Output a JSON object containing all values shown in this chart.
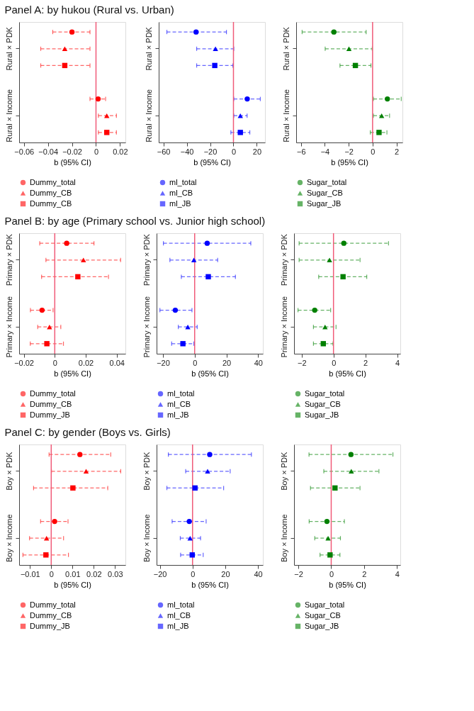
{
  "chart_data": [
    {
      "type": "scatter",
      "title": "Panel A: by hukou (Rural vs. Urban)",
      "xlabel": "b (95% CI)",
      "orientation": "horizontal",
      "categories": [
        null,
        "Rural × PDK",
        null,
        null,
        null,
        "Rural × Income",
        null
      ],
      "xlim": [
        -0.064,
        0.0245
      ],
      "xticks": [
        -0.06,
        -0.04,
        -0.02,
        0,
        0.02
      ],
      "legend": "bottom",
      "line_style": "dashed",
      "ref_lines": [
        {
          "axis": "x",
          "value": 0,
          "color": "#f05a78"
        }
      ],
      "series": [
        {
          "name": "Dummy_total",
          "color": "#ff0000",
          "marker": "circle",
          "values": [
            -0.02,
            null,
            null,
            null,
            0.0018,
            null,
            null
          ],
          "errors": [
            [
              -0.036,
              -0.005
            ],
            null,
            null,
            null,
            [
              -0.005,
              0.008
            ],
            null,
            null
          ]
        },
        {
          "name": "Dummy_CB",
          "color": "#ff0000",
          "marker": "triangle",
          "values": [
            null,
            -0.026,
            null,
            null,
            null,
            0.009,
            null
          ],
          "errors": [
            null,
            [
              -0.046,
              -0.005
            ],
            null,
            null,
            null,
            [
              0.002,
              0.017
            ],
            null
          ]
        },
        {
          "name": "Dummy_CB",
          "color": "#ff0000",
          "marker": "square",
          "values": [
            null,
            null,
            -0.026,
            null,
            null,
            null,
            0.009
          ],
          "errors": [
            null,
            null,
            [
              -0.046,
              -0.005
            ],
            null,
            null,
            null,
            [
              0.002,
              0.017
            ]
          ]
        }
      ]
    },
    {
      "type": "scatter",
      "xlabel": "b (95% CI)",
      "orientation": "horizontal",
      "categories": [
        null,
        "Rural × PDK",
        null,
        null,
        null,
        "Rural × Income",
        null
      ],
      "xlim": [
        -64,
        27
      ],
      "xticks": [
        -60,
        -40,
        -20,
        0,
        20
      ],
      "legend": "bottom",
      "line_style": "dashed",
      "ref_lines": [
        {
          "axis": "x",
          "value": 0,
          "color": "#f05a78"
        }
      ],
      "series": [
        {
          "name": "ml_total",
          "color": "#0000ff",
          "marker": "circle",
          "values": [
            -32,
            null,
            null,
            null,
            11.8,
            null,
            null
          ],
          "errors": [
            [
              -57,
              -6
            ],
            null,
            null,
            null,
            [
              0.3,
              23
            ],
            null,
            null
          ]
        },
        {
          "name": "ml_CB",
          "color": "#0000ff",
          "marker": "triangle",
          "values": [
            null,
            -15.4,
            null,
            null,
            null,
            5.9,
            null
          ],
          "errors": [
            null,
            [
              -31.5,
              0.3
            ],
            null,
            null,
            null,
            [
              0.3,
              11.7
            ],
            null
          ]
        },
        {
          "name": "ml_JB",
          "color": "#0000ff",
          "marker": "square",
          "values": [
            null,
            null,
            -16,
            null,
            null,
            null,
            5.9
          ],
          "errors": [
            null,
            null,
            [
              -31.5,
              -0.5
            ],
            null,
            null,
            null,
            [
              -2.2,
              14
            ]
          ]
        }
      ]
    },
    {
      "type": "scatter",
      "xlabel": "b (95% CI)",
      "orientation": "horizontal",
      "categories": [
        null,
        "Rural × PDK",
        null,
        null,
        null,
        "Rural × Income",
        null
      ],
      "xlim": [
        -6.4,
        2.5
      ],
      "xticks": [
        -6,
        -4,
        -2,
        0,
        2
      ],
      "legend": "bottom",
      "line_style": "dashed",
      "ref_lines": [
        {
          "axis": "x",
          "value": 0,
          "color": "#f05a78"
        }
      ],
      "series": [
        {
          "name": "Sugar_total",
          "color": "#008000",
          "marker": "circle",
          "values": [
            -3.24,
            null,
            null,
            null,
            1.24,
            null,
            null
          ],
          "errors": [
            [
              -5.9,
              -0.54
            ],
            null,
            null,
            null,
            [
              0.07,
              2.4
            ],
            null,
            null
          ]
        },
        {
          "name": "Sugar_CB",
          "color": "#008000",
          "marker": "triangle",
          "values": [
            null,
            -1.98,
            null,
            null,
            null,
            0.76,
            null
          ],
          "errors": [
            null,
            [
              -3.97,
              -0.03
            ],
            null,
            null,
            null,
            [
              0.07,
              1.42
            ],
            null
          ]
        },
        {
          "name": "Sugar_JB",
          "color": "#008000",
          "marker": "square",
          "values": [
            null,
            null,
            -1.44,
            null,
            null,
            null,
            0.54
          ],
          "errors": [
            null,
            null,
            [
              -2.73,
              -0.14
            ],
            null,
            null,
            null,
            [
              -0.19,
              1.2
            ]
          ]
        }
      ]
    },
    {
      "type": "scatter",
      "title": "Panel B: by age (Primary school vs. Junior high school)",
      "xlabel": "b (95% CI)",
      "orientation": "horizontal",
      "categories": [
        null,
        "Primary × PDK",
        null,
        null,
        null,
        "Primary × Income",
        null
      ],
      "xlim": [
        -0.023,
        0.0456
      ],
      "xticks": [
        -0.02,
        0,
        0.02,
        0.04
      ],
      "legend": "bottom",
      "line_style": "dashed",
      "ref_lines": [
        {
          "axis": "x",
          "value": 0,
          "color": "#f05a78"
        }
      ],
      "series": [
        {
          "name": "Dummy_total",
          "color": "#ff0000",
          "marker": "circle",
          "values": [
            0.0077,
            null,
            null,
            null,
            -0.0082,
            null,
            null
          ],
          "errors": [
            [
              -0.0097,
              0.0253
            ],
            null,
            null,
            null,
            [
              -0.0157,
              -0.0011
            ],
            null,
            null
          ]
        },
        {
          "name": "Dummy_CB",
          "color": "#ff0000",
          "marker": "triangle",
          "values": [
            null,
            0.0185,
            null,
            null,
            null,
            -0.0034,
            null
          ],
          "errors": [
            null,
            [
              -0.0057,
              0.0425
            ],
            null,
            null,
            null,
            [
              -0.011,
              0.0039
            ],
            null
          ]
        },
        {
          "name": "Dummy_JB",
          "color": "#ff0000",
          "marker": "square",
          "values": [
            null,
            null,
            0.0149,
            null,
            null,
            null,
            -0.0051
          ],
          "errors": [
            null,
            null,
            [
              -0.0085,
              0.0347
            ],
            null,
            null,
            null,
            [
              -0.0158,
              0.0056
            ]
          ]
        }
      ]
    },
    {
      "type": "scatter",
      "xlabel": "b (95% CI)",
      "orientation": "horizontal",
      "categories": [
        null,
        "Primary × PDK",
        null,
        null,
        null,
        "Primary × Income",
        null
      ],
      "xlim": [
        -24,
        43
      ],
      "xticks": [
        -20,
        0,
        20,
        40
      ],
      "legend": "bottom",
      "line_style": "dashed",
      "ref_lines": [
        {
          "axis": "x",
          "value": 0,
          "color": "#f05a78"
        }
      ],
      "series": [
        {
          "name": "ml_total",
          "color": "#0000ff",
          "marker": "circle",
          "values": [
            7.9,
            null,
            null,
            null,
            -12.2,
            null,
            null
          ],
          "errors": [
            [
              -19.7,
              35.4
            ],
            null,
            null,
            null,
            [
              -21.9,
              -1.7
            ],
            null,
            null
          ]
        },
        {
          "name": "ml_CB",
          "color": "#0000ff",
          "marker": "triangle",
          "values": [
            null,
            -0.5,
            null,
            null,
            null,
            -4.3,
            null
          ],
          "errors": [
            null,
            [
              -15.6,
              14.5
            ],
            null,
            null,
            null,
            [
              -10.3,
              1.6
            ],
            null
          ]
        },
        {
          "name": "ml_JB",
          "color": "#0000ff",
          "marker": "square",
          "values": [
            null,
            null,
            8.6,
            null,
            null,
            null,
            -7.4
          ],
          "errors": [
            null,
            null,
            [
              -8.4,
              25.7
            ],
            null,
            null,
            null,
            [
              -14.5,
              -0.5
            ]
          ]
        }
      ]
    },
    {
      "type": "scatter",
      "xlabel": "b (95% CI)",
      "orientation": "horizontal",
      "categories": [
        null,
        "Primary × PDK",
        null,
        null,
        null,
        "Primary × Income",
        null
      ],
      "xlim": [
        -2.48,
        4.2
      ],
      "xticks": [
        -2,
        0,
        2,
        4
      ],
      "legend": "bottom",
      "line_style": "dashed",
      "ref_lines": [
        {
          "axis": "x",
          "value": 0,
          "color": "#f05a78"
        }
      ],
      "series": [
        {
          "name": "Sugar_total",
          "color": "#008000",
          "marker": "circle",
          "values": [
            0.65,
            null,
            null,
            null,
            -1.18,
            null,
            null
          ],
          "errors": [
            [
              -2.16,
              3.46
            ],
            null,
            null,
            null,
            [
              -2.23,
              -0.18
            ],
            null,
            null
          ]
        },
        {
          "name": "Sugar_CB",
          "color": "#008000",
          "marker": "triangle",
          "values": [
            null,
            -0.25,
            null,
            null,
            null,
            -0.53,
            null
          ],
          "errors": [
            null,
            [
              -2.16,
              1.67
            ],
            null,
            null,
            null,
            [
              -1.26,
              0.16
            ],
            null
          ]
        },
        {
          "name": "Sugar_JB",
          "color": "#008000",
          "marker": "square",
          "values": [
            null,
            null,
            0.6,
            null,
            null,
            null,
            -0.64
          ],
          "errors": [
            null,
            null,
            [
              -0.93,
              2.09
            ],
            null,
            null,
            null,
            [
              -1.26,
              -0.03
            ]
          ]
        }
      ]
    },
    {
      "type": "scatter",
      "title": "Panel C: by gender (Boys vs. Girls)",
      "xlabel": "b (95% CI)",
      "orientation": "horizontal",
      "categories": [
        null,
        "Boy × PDK",
        null,
        null,
        null,
        "Boy × Income",
        null
      ],
      "xlim": [
        -0.0151,
        0.0349
      ],
      "xticks": [
        -0.01,
        0,
        0.01,
        0.02,
        0.03
      ],
      "legend": "bottom",
      "line_style": "dashed",
      "ref_lines": [
        {
          "axis": "x",
          "value": 0,
          "color": "#f05a78"
        }
      ],
      "series": [
        {
          "name": "Dummy_total",
          "color": "#ff0000",
          "marker": "circle",
          "values": [
            0.0135,
            null,
            null,
            null,
            0.0016,
            null,
            null
          ],
          "errors": [
            [
              -0.001,
              0.028
            ],
            null,
            null,
            null,
            [
              -0.005,
              0.0079
            ],
            null,
            null
          ]
        },
        {
          "name": "Dummy_CB",
          "color": "#ff0000",
          "marker": "triangle",
          "values": [
            null,
            0.0164,
            null,
            null,
            null,
            -0.0022,
            null
          ],
          "errors": [
            null,
            [
              0.0001,
              0.0327
            ],
            null,
            null,
            null,
            [
              -0.0102,
              0.0058
            ],
            null
          ]
        },
        {
          "name": "Dummy_JB",
          "color": "#ff0000",
          "marker": "square",
          "values": [
            null,
            null,
            0.0102,
            null,
            null,
            null,
            -0.0025
          ],
          "errors": [
            null,
            null,
            [
              -0.0083,
              0.0266
            ],
            null,
            null,
            null,
            [
              -0.0133,
              0.0081
            ]
          ]
        }
      ]
    },
    {
      "type": "scatter",
      "xlabel": "b (95% CI)",
      "orientation": "horizontal",
      "categories": [
        null,
        "Boy × PDK",
        null,
        null,
        null,
        "Boy × Income",
        null
      ],
      "xlim": [
        -22,
        43
      ],
      "xticks": [
        -20,
        0,
        20,
        40
      ],
      "legend": "bottom",
      "line_style": "dashed",
      "ref_lines": [
        {
          "axis": "x",
          "value": 0,
          "color": "#f05a78"
        }
      ],
      "series": [
        {
          "name": "ml_total",
          "color": "#0000ff",
          "marker": "circle",
          "values": [
            10.5,
            null,
            null,
            null,
            -2.0,
            null,
            null
          ],
          "errors": [
            [
              -14.8,
              36
            ],
            null,
            null,
            null,
            [
              -12.5,
              8.3
            ],
            null,
            null
          ]
        },
        {
          "name": "ml_CB",
          "color": "#0000ff",
          "marker": "triangle",
          "values": [
            null,
            9.2,
            null,
            null,
            null,
            -1.5,
            null
          ],
          "errors": [
            null,
            [
              -4.2,
              23
            ],
            null,
            null,
            null,
            [
              -7.5,
              4.9
            ],
            null
          ]
        },
        {
          "name": "ml_JB",
          "color": "#0000ff",
          "marker": "square",
          "values": [
            null,
            null,
            1.5,
            null,
            null,
            null,
            -0.2
          ],
          "errors": [
            null,
            null,
            [
              -15.7,
              19
            ],
            null,
            null,
            null,
            [
              -7.3,
              6.5
            ]
          ]
        }
      ]
    },
    {
      "type": "scatter",
      "xlabel": "b (95% CI)",
      "orientation": "horizontal",
      "categories": [
        null,
        "Boy × PDK",
        null,
        null,
        null,
        "Boy × Income",
        null
      ],
      "xlim": [
        -2.26,
        4.2
      ],
      "xticks": [
        -2,
        0,
        2,
        4
      ],
      "legend": "bottom",
      "line_style": "dashed",
      "ref_lines": [
        {
          "axis": "x",
          "value": 0,
          "color": "#f05a78"
        }
      ],
      "series": [
        {
          "name": "Sugar_total",
          "color": "#008000",
          "marker": "circle",
          "values": [
            1.2,
            null,
            null,
            null,
            -0.26,
            null,
            null
          ],
          "errors": [
            [
              -1.35,
              3.75
            ],
            null,
            null,
            null,
            [
              -1.34,
              0.8
            ],
            null,
            null
          ]
        },
        {
          "name": "Sugar_CB",
          "color": "#008000",
          "marker": "triangle",
          "values": [
            null,
            1.22,
            null,
            null,
            null,
            -0.19,
            null
          ],
          "errors": [
            null,
            [
              -0.45,
              2.9
            ],
            null,
            null,
            null,
            [
              -1.0,
              0.56
            ],
            null
          ]
        },
        {
          "name": "Sugar_JB",
          "color": "#008000",
          "marker": "square",
          "values": [
            null,
            null,
            0.23,
            null,
            null,
            null,
            -0.07
          ],
          "errors": [
            null,
            null,
            [
              -1.26,
              1.75
            ],
            null,
            null,
            null,
            [
              -0.68,
              0.53
            ]
          ]
        }
      ]
    }
  ]
}
